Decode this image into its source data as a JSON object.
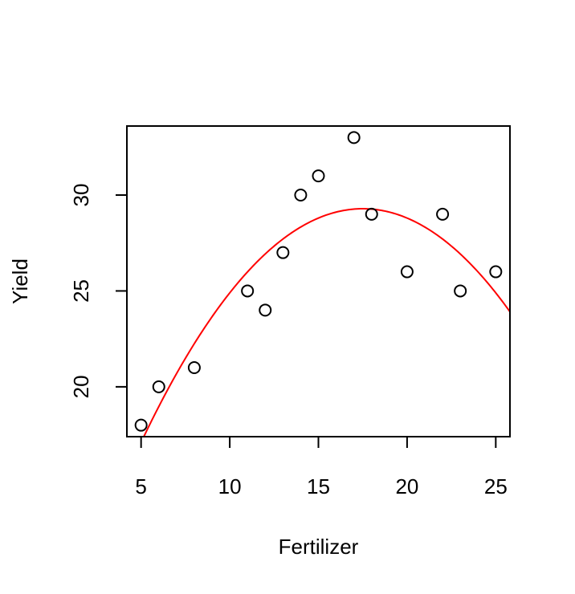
{
  "chart_data": {
    "type": "scatter",
    "xlabel": "Fertilizer",
    "ylabel": "Yield",
    "xlim": [
      4.2,
      25.8
    ],
    "ylim": [
      17.4,
      33.6
    ],
    "xticks": [
      5,
      10,
      15,
      20,
      25
    ],
    "yticks": [
      20,
      25,
      30
    ],
    "grid": false,
    "points": {
      "x": [
        5,
        6,
        8,
        11,
        12,
        13,
        14,
        15,
        17,
        18,
        20,
        22,
        23,
        25
      ],
      "y": [
        18,
        20,
        21,
        25,
        24,
        27,
        30,
        31,
        33,
        29,
        26,
        29,
        25,
        26
      ]
    },
    "fit_curve": {
      "type": "quadratic",
      "coefficients": [
        5.4,
        2.73,
        -0.078
      ],
      "color": "#ff0000"
    },
    "marker_color": "#000000"
  }
}
